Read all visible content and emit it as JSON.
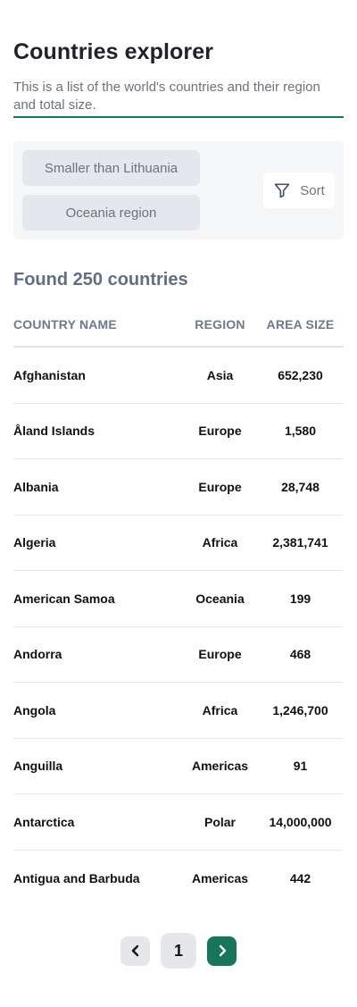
{
  "header": {
    "title": "Countries explorer",
    "subtitle": "This is a list of the world's countries and their region and total size."
  },
  "filters": {
    "chips": [
      "Smaller than Lithuania",
      "Oceania region"
    ],
    "sort_label": "Sort"
  },
  "results": {
    "found_label": "Found 250 countries"
  },
  "table": {
    "columns": [
      "COUNTRY NAME",
      "REGION",
      "AREA SIZE"
    ],
    "rows": [
      {
        "name": "Afghanistan",
        "region": "Asia",
        "area": "652,230"
      },
      {
        "name": "Åland Islands",
        "region": "Europe",
        "area": "1,580"
      },
      {
        "name": "Albania",
        "region": "Europe",
        "area": "28,748"
      },
      {
        "name": "Algeria",
        "region": "Africa",
        "area": "2,381,741"
      },
      {
        "name": "American Samoa",
        "region": "Oceania",
        "area": "199"
      },
      {
        "name": "Andorra",
        "region": "Europe",
        "area": "468"
      },
      {
        "name": "Angola",
        "region": "Africa",
        "area": "1,246,700"
      },
      {
        "name": "Anguilla",
        "region": "Americas",
        "area": "91"
      },
      {
        "name": "Antarctica",
        "region": "Polar",
        "area": "14,000,000"
      },
      {
        "name": "Antigua and Barbuda",
        "region": "Americas",
        "area": "442"
      }
    ]
  },
  "pagination": {
    "current_page": "1",
    "prev_icon": "chevron-left-icon",
    "next_icon": "chevron-right-icon"
  },
  "colors": {
    "accent": "#16755a",
    "muted_text": "#6b7280",
    "panel_bg": "#f5f6f8"
  }
}
